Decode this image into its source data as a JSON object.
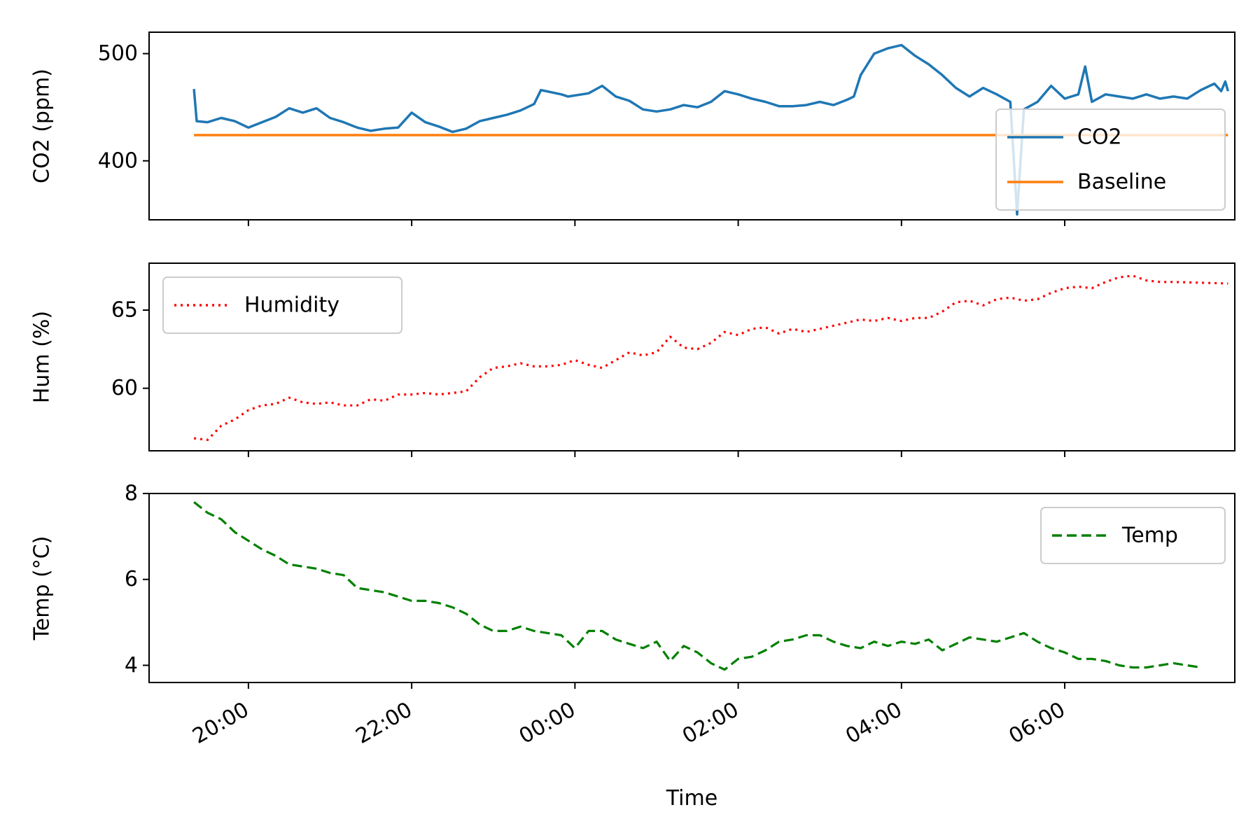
{
  "chart_data": [
    {
      "type": "line",
      "ylabel": "CO2 (ppm)",
      "ylim": [
        345,
        520
      ],
      "yticks": [
        400,
        500
      ],
      "x_axis": "time",
      "xlim": [
        "18:47",
        "08:05"
      ],
      "xticks": [
        "20:00",
        "22:00",
        "00:00",
        "02:00",
        "04:00",
        "06:00"
      ],
      "tick_labels_shown": false,
      "grid": false,
      "legend": "lower-right",
      "series": [
        {
          "name": "CO2",
          "color": "#1f77b4",
          "style": "solid",
          "points": [
            [
              "19:20",
              467
            ],
            [
              "19:22",
              437
            ],
            [
              "19:30",
              436
            ],
            [
              "19:40",
              440
            ],
            [
              "19:50",
              437
            ],
            [
              "20:00",
              431
            ],
            [
              "20:10",
              436
            ],
            [
              "20:20",
              441
            ],
            [
              "20:30",
              449
            ],
            [
              "20:40",
              445
            ],
            [
              "20:50",
              449
            ],
            [
              "21:00",
              440
            ],
            [
              "21:10",
              436
            ],
            [
              "21:20",
              431
            ],
            [
              "21:30",
              428
            ],
            [
              "21:40",
              430
            ],
            [
              "21:50",
              431
            ],
            [
              "22:00",
              445
            ],
            [
              "22:10",
              436
            ],
            [
              "22:20",
              432
            ],
            [
              "22:30",
              427
            ],
            [
              "22:40",
              430
            ],
            [
              "22:50",
              437
            ],
            [
              "23:00",
              440
            ],
            [
              "23:10",
              443
            ],
            [
              "23:20",
              447
            ],
            [
              "23:30",
              453
            ],
            [
              "23:35",
              466
            ],
            [
              "23:50",
              462
            ],
            [
              "23:55",
              460
            ],
            [
              "00:10",
              463
            ],
            [
              "00:20",
              470
            ],
            [
              "00:30",
              460
            ],
            [
              "00:40",
              456
            ],
            [
              "00:50",
              448
            ],
            [
              "01:00",
              446
            ],
            [
              "01:10",
              448
            ],
            [
              "01:20",
              452
            ],
            [
              "01:30",
              450
            ],
            [
              "01:40",
              455
            ],
            [
              "01:50",
              465
            ],
            [
              "02:00",
              462
            ],
            [
              "02:10",
              458
            ],
            [
              "02:20",
              455
            ],
            [
              "02:30",
              451
            ],
            [
              "02:40",
              451
            ],
            [
              "02:50",
              452
            ],
            [
              "03:00",
              455
            ],
            [
              "03:10",
              452
            ],
            [
              "03:20",
              457
            ],
            [
              "03:25",
              460
            ],
            [
              "03:30",
              480
            ],
            [
              "03:40",
              500
            ],
            [
              "03:50",
              505
            ],
            [
              "04:00",
              508
            ],
            [
              "04:10",
              498
            ],
            [
              "04:20",
              490
            ],
            [
              "04:30",
              480
            ],
            [
              "04:40",
              468
            ],
            [
              "04:50",
              460
            ],
            [
              "05:00",
              468
            ],
            [
              "05:10",
              462
            ],
            [
              "05:20",
              455
            ],
            [
              "05:25",
              350
            ],
            [
              "05:30",
              448
            ],
            [
              "05:40",
              455
            ],
            [
              "05:50",
              470
            ],
            [
              "06:00",
              458
            ],
            [
              "06:10",
              462
            ],
            [
              "06:15",
              488
            ],
            [
              "06:20",
              455
            ],
            [
              "06:30",
              462
            ],
            [
              "06:40",
              460
            ],
            [
              "06:50",
              458
            ],
            [
              "07:00",
              462
            ],
            [
              "07:10",
              458
            ],
            [
              "07:20",
              460
            ],
            [
              "07:30",
              458
            ],
            [
              "07:40",
              466
            ],
            [
              "07:50",
              472
            ],
            [
              "07:55",
              465
            ],
            [
              "07:58",
              474
            ],
            [
              "08:00",
              465
            ]
          ]
        },
        {
          "name": "Baseline",
          "color": "#ff7f0e",
          "style": "solid",
          "points": [
            [
              "19:20",
              424
            ],
            [
              "08:00",
              424
            ]
          ]
        }
      ]
    },
    {
      "type": "line",
      "ylabel": "Hum (%)",
      "ylim": [
        56,
        68
      ],
      "yticks": [
        60,
        65
      ],
      "x_axis": "time",
      "xlim": [
        "18:47",
        "08:05"
      ],
      "xticks": [
        "20:00",
        "22:00",
        "00:00",
        "02:00",
        "04:00",
        "06:00"
      ],
      "tick_labels_shown": false,
      "grid": false,
      "legend": "upper-left",
      "series": [
        {
          "name": "Humidity",
          "color": "#ff0000",
          "style": "dotted",
          "points": [
            [
              "19:20",
              56.8
            ],
            [
              "19:30",
              56.7
            ],
            [
              "19:40",
              57.6
            ],
            [
              "19:50",
              58.0
            ],
            [
              "20:00",
              58.6
            ],
            [
              "20:10",
              58.9
            ],
            [
              "20:20",
              59.0
            ],
            [
              "20:30",
              59.4
            ],
            [
              "20:40",
              59.1
            ],
            [
              "20:50",
              59.0
            ],
            [
              "21:00",
              59.1
            ],
            [
              "21:10",
              58.9
            ],
            [
              "21:20",
              58.9
            ],
            [
              "21:30",
              59.3
            ],
            [
              "21:40",
              59.2
            ],
            [
              "21:50",
              59.6
            ],
            [
              "22:00",
              59.6
            ],
            [
              "22:10",
              59.7
            ],
            [
              "22:20",
              59.6
            ],
            [
              "22:30",
              59.7
            ],
            [
              "22:40",
              59.8
            ],
            [
              "22:50",
              60.7
            ],
            [
              "23:00",
              61.3
            ],
            [
              "23:10",
              61.4
            ],
            [
              "23:20",
              61.6
            ],
            [
              "23:30",
              61.4
            ],
            [
              "23:40",
              61.4
            ],
            [
              "23:50",
              61.5
            ],
            [
              "00:00",
              61.8
            ],
            [
              "00:10",
              61.5
            ],
            [
              "00:20",
              61.3
            ],
            [
              "00:30",
              61.8
            ],
            [
              "00:40",
              62.3
            ],
            [
              "00:50",
              62.1
            ],
            [
              "01:00",
              62.3
            ],
            [
              "01:10",
              63.3
            ],
            [
              "01:20",
              62.6
            ],
            [
              "01:30",
              62.5
            ],
            [
              "01:40",
              62.9
            ],
            [
              "01:50",
              63.6
            ],
            [
              "02:00",
              63.4
            ],
            [
              "02:10",
              63.8
            ],
            [
              "02:20",
              63.9
            ],
            [
              "02:30",
              63.5
            ],
            [
              "02:40",
              63.8
            ],
            [
              "02:50",
              63.6
            ],
            [
              "03:00",
              63.8
            ],
            [
              "03:10",
              64.0
            ],
            [
              "03:20",
              64.2
            ],
            [
              "03:30",
              64.4
            ],
            [
              "03:40",
              64.3
            ],
            [
              "03:50",
              64.5
            ],
            [
              "04:00",
              64.3
            ],
            [
              "04:10",
              64.5
            ],
            [
              "04:20",
              64.5
            ],
            [
              "04:30",
              64.9
            ],
            [
              "04:40",
              65.5
            ],
            [
              "04:50",
              65.6
            ],
            [
              "05:00",
              65.3
            ],
            [
              "05:10",
              65.7
            ],
            [
              "05:20",
              65.8
            ],
            [
              "05:30",
              65.6
            ],
            [
              "05:40",
              65.7
            ],
            [
              "05:50",
              66.1
            ],
            [
              "06:00",
              66.4
            ],
            [
              "06:10",
              66.5
            ],
            [
              "06:20",
              66.4
            ],
            [
              "06:30",
              66.8
            ],
            [
              "06:40",
              67.1
            ],
            [
              "06:50",
              67.2
            ],
            [
              "07:00",
              66.9
            ],
            [
              "07:10",
              66.8
            ],
            [
              "07:20",
              66.8
            ],
            [
              "08:00",
              66.7
            ]
          ]
        }
      ]
    },
    {
      "type": "line",
      "ylabel": "Temp (°C)",
      "ylim": [
        3.6,
        8.0
      ],
      "yticks": [
        4,
        6,
        8
      ],
      "x_axis": "time",
      "xlabel": "Time",
      "xlim": [
        "18:47",
        "08:05"
      ],
      "xticks": [
        "20:00",
        "22:00",
        "00:00",
        "02:00",
        "04:00",
        "06:00"
      ],
      "tick_labels_shown": true,
      "grid": false,
      "legend": "upper-right",
      "series": [
        {
          "name": "Temp",
          "color": "#008000",
          "style": "dashed",
          "points": [
            [
              "19:20",
              7.8
            ],
            [
              "19:30",
              7.55
            ],
            [
              "19:40",
              7.4
            ],
            [
              "19:50",
              7.1
            ],
            [
              "20:00",
              6.9
            ],
            [
              "20:10",
              6.7
            ],
            [
              "20:20",
              6.55
            ],
            [
              "20:30",
              6.35
            ],
            [
              "20:40",
              6.3
            ],
            [
              "20:50",
              6.25
            ],
            [
              "21:00",
              6.15
            ],
            [
              "21:10",
              6.1
            ],
            [
              "21:20",
              5.8
            ],
            [
              "21:30",
              5.75
            ],
            [
              "21:40",
              5.7
            ],
            [
              "21:50",
              5.6
            ],
            [
              "22:00",
              5.5
            ],
            [
              "22:10",
              5.5
            ],
            [
              "22:20",
              5.45
            ],
            [
              "22:30",
              5.35
            ],
            [
              "22:40",
              5.2
            ],
            [
              "22:50",
              4.95
            ],
            [
              "23:00",
              4.8
            ],
            [
              "23:10",
              4.8
            ],
            [
              "23:20",
              4.9
            ],
            [
              "23:30",
              4.8
            ],
            [
              "23:40",
              4.75
            ],
            [
              "23:50",
              4.7
            ],
            [
              "00:00",
              4.4
            ],
            [
              "00:10",
              4.8
            ],
            [
              "00:20",
              4.8
            ],
            [
              "00:30",
              4.6
            ],
            [
              "00:40",
              4.5
            ],
            [
              "00:50",
              4.4
            ],
            [
              "01:00",
              4.55
            ],
            [
              "01:10",
              4.1
            ],
            [
              "01:20",
              4.45
            ],
            [
              "01:30",
              4.3
            ],
            [
              "01:40",
              4.05
            ],
            [
              "01:50",
              3.9
            ],
            [
              "02:00",
              4.15
            ],
            [
              "02:10",
              4.2
            ],
            [
              "02:20",
              4.35
            ],
            [
              "02:30",
              4.55
            ],
            [
              "02:40",
              4.6
            ],
            [
              "02:50",
              4.7
            ],
            [
              "03:00",
              4.7
            ],
            [
              "03:10",
              4.55
            ],
            [
              "03:20",
              4.45
            ],
            [
              "03:30",
              4.4
            ],
            [
              "03:40",
              4.55
            ],
            [
              "03:50",
              4.45
            ],
            [
              "04:00",
              4.55
            ],
            [
              "04:10",
              4.5
            ],
            [
              "04:20",
              4.6
            ],
            [
              "04:30",
              4.35
            ],
            [
              "04:40",
              4.5
            ],
            [
              "04:50",
              4.65
            ],
            [
              "05:00",
              4.6
            ],
            [
              "05:10",
              4.55
            ],
            [
              "05:20",
              4.65
            ],
            [
              "05:30",
              4.75
            ],
            [
              "05:40",
              4.55
            ],
            [
              "05:50",
              4.4
            ],
            [
              "06:00",
              4.3
            ],
            [
              "06:10",
              4.15
            ],
            [
              "06:20",
              4.15
            ],
            [
              "06:30",
              4.1
            ],
            [
              "06:40",
              4.0
            ],
            [
              "06:50",
              3.95
            ],
            [
              "07:00",
              3.95
            ],
            [
              "07:10",
              4.0
            ],
            [
              "07:20",
              4.05
            ],
            [
              "07:30",
              4.0
            ],
            [
              "07:40",
              3.95
            ]
          ]
        }
      ]
    }
  ]
}
